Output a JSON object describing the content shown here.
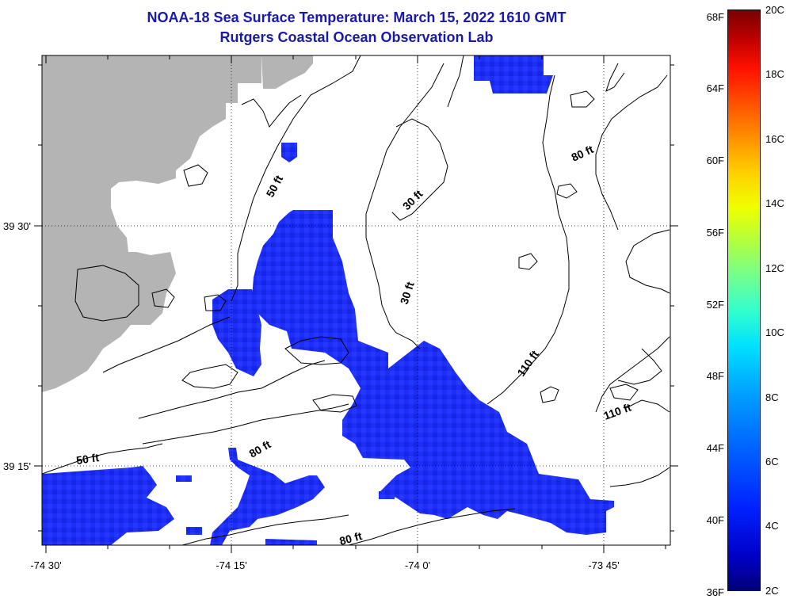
{
  "header": {
    "title": "NOAA-18 Sea Surface Temperature:  March 15, 2022 1610 GMT",
    "subtitle": "Rutgers Coastal Ocean Observation Lab"
  },
  "axes": {
    "x_labels": [
      "-74 30'",
      "-74 15'",
      "-74 0'",
      "-73 45'"
    ],
    "y_labels": [
      "39 30'",
      "39 15'"
    ]
  },
  "depth_labels": [
    "50 ft",
    "30 ft",
    "80 ft",
    "30 ft",
    "110 ft",
    "110 ft",
    "80 ft",
    "50 ft",
    "80 ft"
  ],
  "colorbar": {
    "fahrenheit": [
      "68F",
      "64F",
      "60F",
      "56F",
      "52F",
      "48F",
      "44F",
      "40F",
      "36F"
    ],
    "celsius": [
      "20C",
      "18C",
      "16C",
      "14C",
      "12C",
      "10C",
      "8C",
      "6C",
      "4C",
      "2C"
    ]
  },
  "colors": {
    "title": "#1a1aa8",
    "land": "#b4b4b4",
    "water_cold": "#1a2cff",
    "water_cold_dark": "#0f1ee0"
  }
}
